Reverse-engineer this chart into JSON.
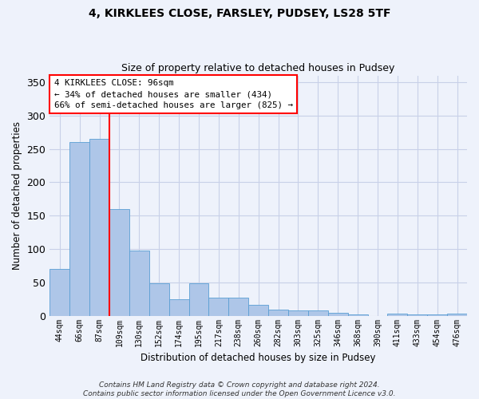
{
  "title1": "4, KIRKLEES CLOSE, FARSLEY, PUDSEY, LS28 5TF",
  "title2": "Size of property relative to detached houses in Pudsey",
  "xlabel": "Distribution of detached houses by size in Pudsey",
  "ylabel": "Number of detached properties",
  "categories": [
    "44sqm",
    "66sqm",
    "87sqm",
    "109sqm",
    "130sqm",
    "152sqm",
    "174sqm",
    "195sqm",
    "217sqm",
    "238sqm",
    "260sqm",
    "282sqm",
    "303sqm",
    "325sqm",
    "346sqm",
    "368sqm",
    "390sqm",
    "411sqm",
    "433sqm",
    "454sqm",
    "476sqm"
  ],
  "values": [
    70,
    260,
    265,
    160,
    98,
    48,
    25,
    48,
    27,
    27,
    16,
    9,
    8,
    8,
    4,
    2,
    0,
    3,
    2,
    2,
    3
  ],
  "bar_color": "#aec6e8",
  "bar_edge_color": "#5a9fd4",
  "background_color": "#eef2fb",
  "grid_color": "#c8d0e8",
  "red_line_x": 2.5,
  "annotation_box_text": "4 KIRKLEES CLOSE: 96sqm\n← 34% of detached houses are smaller (434)\n66% of semi-detached houses are larger (825) →",
  "ylim": [
    0,
    360
  ],
  "yticks": [
    0,
    50,
    100,
    150,
    200,
    250,
    300,
    350
  ],
  "footnote": "Contains HM Land Registry data © Crown copyright and database right 2024.\nContains public sector information licensed under the Open Government Licence v3.0."
}
